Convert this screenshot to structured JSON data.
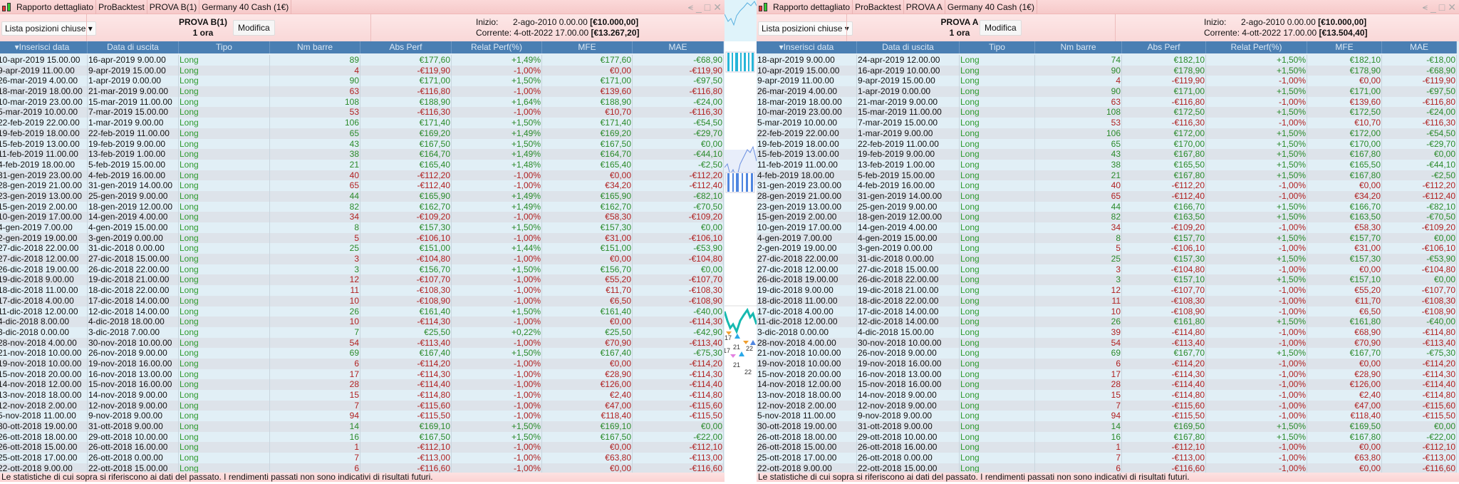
{
  "columns": [
    "▾Inserisci data",
    "Data di uscita",
    "Tipo",
    "Nm barre",
    "Abs Perf",
    "Relat Perf(%)",
    "MFE",
    "MAE"
  ],
  "colors": {
    "positive": "#2a8a2a",
    "negative": "#b02020",
    "header": "#4a7fb3",
    "type": "#2e9a2e"
  },
  "left": {
    "title_segments": [
      "Rapporto dettagliato",
      "ProBacktest",
      "PROVA B(1)",
      "Germany 40 Cash (1€)"
    ],
    "dropdown": "Lista posizioni chiuse ▾",
    "strategy": "PROVA B(1)",
    "timeframe": "1 ora",
    "modify": "Modifica",
    "start_label": "Inizio:",
    "start_value": "2-ago-2010 0.00.00",
    "start_capital": "[€10.000,00]",
    "current_label": "Corrente:",
    "current_value": "4-ott-2022 17.00.00",
    "current_capital": "[€13.267,20]",
    "footer": "Le statistiche di cui sopra si riferiscono ai dati del passato. I rendimenti passati non sono indicativi di risultati futuri.",
    "rows": [
      [
        "10-apr-2019 15.00.00",
        "16-apr-2019 9.00.00",
        "Long",
        "89",
        "€177,60",
        "+1,49%",
        "€177,60",
        "-€68,90"
      ],
      [
        "9-apr-2019 11.00.00",
        "9-apr-2019 15.00.00",
        "Long",
        "4",
        "-€119,90",
        "-1,00%",
        "€0,00",
        "-€119,90"
      ],
      [
        "26-mar-2019 4.00.00",
        "1-apr-2019 0.00.00",
        "Long",
        "90",
        "€171,00",
        "+1,50%",
        "€171,00",
        "-€97,50"
      ],
      [
        "18-mar-2019 18.00.00",
        "21-mar-2019 9.00.00",
        "Long",
        "63",
        "-€116,80",
        "-1,00%",
        "€139,60",
        "-€116,80"
      ],
      [
        "10-mar-2019 23.00.00",
        "15-mar-2019 11.00.00",
        "Long",
        "108",
        "€188,90",
        "+1,64%",
        "€188,90",
        "-€24,00"
      ],
      [
        "5-mar-2019 10.00.00",
        "7-mar-2019 15.00.00",
        "Long",
        "53",
        "-€116,30",
        "-1,00%",
        "€10,70",
        "-€116,30"
      ],
      [
        "22-feb-2019 22.00.00",
        "1-mar-2019 9.00.00",
        "Long",
        "106",
        "€171,40",
        "+1,50%",
        "€171,40",
        "-€54,50"
      ],
      [
        "19-feb-2019 18.00.00",
        "22-feb-2019 11.00.00",
        "Long",
        "65",
        "€169,20",
        "+1,49%",
        "€169,20",
        "-€29,70"
      ],
      [
        "15-feb-2019 13.00.00",
        "19-feb-2019 9.00.00",
        "Long",
        "43",
        "€167,50",
        "+1,50%",
        "€167,50",
        "€0,00"
      ],
      [
        "11-feb-2019 11.00.00",
        "13-feb-2019 1.00.00",
        "Long",
        "38",
        "€164,70",
        "+1,49%",
        "€164,70",
        "-€44,10"
      ],
      [
        "4-feb-2019 18.00.00",
        "5-feb-2019 15.00.00",
        "Long",
        "21",
        "€165,40",
        "+1,48%",
        "€165,40",
        "-€2,50"
      ],
      [
        "31-gen-2019 23.00.00",
        "4-feb-2019 16.00.00",
        "Long",
        "40",
        "-€112,20",
        "-1,00%",
        "€0,00",
        "-€112,20"
      ],
      [
        "28-gen-2019 21.00.00",
        "31-gen-2019 14.00.00",
        "Long",
        "65",
        "-€112,40",
        "-1,00%",
        "€34,20",
        "-€112,40"
      ],
      [
        "23-gen-2019 13.00.00",
        "25-gen-2019 9.00.00",
        "Long",
        "44",
        "€165,90",
        "+1,49%",
        "€165,90",
        "-€82,10"
      ],
      [
        "15-gen-2019 2.00.00",
        "18-gen-2019 12.00.00",
        "Long",
        "82",
        "€162,70",
        "+1,49%",
        "€162,70",
        "-€70,50"
      ],
      [
        "10-gen-2019 17.00.00",
        "14-gen-2019 4.00.00",
        "Long",
        "34",
        "-€109,20",
        "-1,00%",
        "€58,30",
        "-€109,20"
      ],
      [
        "4-gen-2019 7.00.00",
        "4-gen-2019 15.00.00",
        "Long",
        "8",
        "€157,30",
        "+1,50%",
        "€157,30",
        "€0,00"
      ],
      [
        "2-gen-2019 19.00.00",
        "3-gen-2019 0.00.00",
        "Long",
        "5",
        "-€106,10",
        "-1,00%",
        "€31,00",
        "-€106,10"
      ],
      [
        "27-dic-2018 22.00.00",
        "31-dic-2018 0.00.00",
        "Long",
        "25",
        "€151,00",
        "+1,44%",
        "€151,00",
        "-€53,90"
      ],
      [
        "27-dic-2018 12.00.00",
        "27-dic-2018 15.00.00",
        "Long",
        "3",
        "-€104,80",
        "-1,00%",
        "€0,00",
        "-€104,80"
      ],
      [
        "26-dic-2018 19.00.00",
        "26-dic-2018 22.00.00",
        "Long",
        "3",
        "€156,70",
        "+1,50%",
        "€156,70",
        "€0,00"
      ],
      [
        "19-dic-2018 9.00.00",
        "19-dic-2018 21.00.00",
        "Long",
        "12",
        "-€107,70",
        "-1,00%",
        "€55,20",
        "-€107,70"
      ],
      [
        "18-dic-2018 11.00.00",
        "18-dic-2018 22.00.00",
        "Long",
        "11",
        "-€108,30",
        "-1,00%",
        "€11,70",
        "-€108,30"
      ],
      [
        "17-dic-2018 4.00.00",
        "17-dic-2018 14.00.00",
        "Long",
        "10",
        "-€108,90",
        "-1,00%",
        "€6,50",
        "-€108,90"
      ],
      [
        "11-dic-2018 12.00.00",
        "12-dic-2018 14.00.00",
        "Long",
        "26",
        "€161,40",
        "+1,50%",
        "€161,40",
        "-€40,00"
      ],
      [
        "4-dic-2018 8.00.00",
        "4-dic-2018 18.00.00",
        "Long",
        "10",
        "-€114,30",
        "-1,00%",
        "€0,00",
        "-€114,30"
      ],
      [
        "3-dic-2018 0.00.00",
        "3-dic-2018 7.00.00",
        "Long",
        "7",
        "€25,50",
        "+0,22%",
        "€25,50",
        "-€42,90"
      ],
      [
        "28-nov-2018 4.00.00",
        "30-nov-2018 10.00.00",
        "Long",
        "54",
        "-€113,40",
        "-1,00%",
        "€70,90",
        "-€113,40"
      ],
      [
        "21-nov-2018 10.00.00",
        "26-nov-2018 9.00.00",
        "Long",
        "69",
        "€167,40",
        "+1,50%",
        "€167,40",
        "-€75,30"
      ],
      [
        "19-nov-2018 10.00.00",
        "19-nov-2018 16.00.00",
        "Long",
        "6",
        "-€114,20",
        "-1,00%",
        "€0,00",
        "-€114,20"
      ],
      [
        "15-nov-2018 20.00.00",
        "16-nov-2018 13.00.00",
        "Long",
        "17",
        "-€114,30",
        "-1,00%",
        "€28,90",
        "-€114,30"
      ],
      [
        "14-nov-2018 12.00.00",
        "15-nov-2018 16.00.00",
        "Long",
        "28",
        "-€114,40",
        "-1,00%",
        "€126,00",
        "-€114,40"
      ],
      [
        "13-nov-2018 18.00.00",
        "14-nov-2018 9.00.00",
        "Long",
        "15",
        "-€114,80",
        "-1,00%",
        "€2,40",
        "-€114,80"
      ],
      [
        "12-nov-2018 2.00.00",
        "12-nov-2018 9.00.00",
        "Long",
        "7",
        "-€115,60",
        "-1,00%",
        "€47,00",
        "-€115,60"
      ],
      [
        "5-nov-2018 11.00.00",
        "9-nov-2018 9.00.00",
        "Long",
        "94",
        "-€115,50",
        "-1,00%",
        "€118,40",
        "-€115,50"
      ],
      [
        "30-ott-2018 19.00.00",
        "31-ott-2018 9.00.00",
        "Long",
        "14",
        "€169,10",
        "+1,50%",
        "€169,10",
        "€0,00"
      ],
      [
        "26-ott-2018 18.00.00",
        "29-ott-2018 10.00.00",
        "Long",
        "16",
        "€167,50",
        "+1,50%",
        "€167,50",
        "-€22,00"
      ],
      [
        "26-ott-2018 15.00.00",
        "26-ott-2018 16.00.00",
        "Long",
        "1",
        "-€112,10",
        "-1,00%",
        "€0,00",
        "-€112,10"
      ],
      [
        "25-ott-2018 17.00.00",
        "26-ott-2018 0.00.00",
        "Long",
        "7",
        "-€113,00",
        "-1,00%",
        "€63,80",
        "-€113,00"
      ],
      [
        "22-ott-2018 9.00.00",
        "22-ott-2018 15.00.00",
        "Long",
        "6",
        "-€116,60",
        "-1,00%",
        "€0,00",
        "-€116,60"
      ]
    ]
  },
  "right": {
    "title_segments": [
      "Rapporto dettagliato",
      "ProBacktest",
      "PROVA A",
      "Germany 40 Cash (1€)"
    ],
    "dropdown": "Lista posizioni chiuse ▾",
    "strategy": "PROVA A",
    "timeframe": "1 ora",
    "modify": "Modifica",
    "start_label": "Inizio:",
    "start_value": "2-ago-2010 0.00.00",
    "start_capital": "[€10.000,00]",
    "current_label": "Corrente:",
    "current_value": "4-ott-2022 17.00.00",
    "current_capital": "[€13.504,40]",
    "footer": "Le statistiche di cui sopra si riferiscono ai dati del passato. I rendimenti passati non sono indicativi di risultati futuri.",
    "rows": [
      [
        "18-apr-2019 9.00.00",
        "24-apr-2019 12.00.00",
        "Long",
        "74",
        "€182,10",
        "+1,50%",
        "€182,10",
        "-€18,00"
      ],
      [
        "10-apr-2019 15.00.00",
        "16-apr-2019 10.00.00",
        "Long",
        "90",
        "€178,90",
        "+1,50%",
        "€178,90",
        "-€68,90"
      ],
      [
        "9-apr-2019 11.00.00",
        "9-apr-2019 15.00.00",
        "Long",
        "4",
        "-€119,90",
        "-1,00%",
        "€0,00",
        "-€119,90"
      ],
      [
        "26-mar-2019 4.00.00",
        "1-apr-2019 0.00.00",
        "Long",
        "90",
        "€171,00",
        "+1,50%",
        "€171,00",
        "-€97,50"
      ],
      [
        "18-mar-2019 18.00.00",
        "21-mar-2019 9.00.00",
        "Long",
        "63",
        "-€116,80",
        "-1,00%",
        "€139,60",
        "-€116,80"
      ],
      [
        "10-mar-2019 23.00.00",
        "15-mar-2019 11.00.00",
        "Long",
        "108",
        "€172,50",
        "+1,50%",
        "€172,50",
        "-€24,00"
      ],
      [
        "5-mar-2019 10.00.00",
        "7-mar-2019 15.00.00",
        "Long",
        "53",
        "-€116,30",
        "-1,00%",
        "€10,70",
        "-€116,30"
      ],
      [
        "22-feb-2019 22.00.00",
        "1-mar-2019 9.00.00",
        "Long",
        "106",
        "€172,00",
        "+1,50%",
        "€172,00",
        "-€54,50"
      ],
      [
        "19-feb-2019 18.00.00",
        "22-feb-2019 11.00.00",
        "Long",
        "65",
        "€170,00",
        "+1,50%",
        "€170,00",
        "-€29,70"
      ],
      [
        "15-feb-2019 13.00.00",
        "19-feb-2019 9.00.00",
        "Long",
        "43",
        "€167,80",
        "+1,50%",
        "€167,80",
        "€0,00"
      ],
      [
        "11-feb-2019 11.00.00",
        "13-feb-2019 1.00.00",
        "Long",
        "38",
        "€165,50",
        "+1,50%",
        "€165,50",
        "-€44,10"
      ],
      [
        "4-feb-2019 18.00.00",
        "5-feb-2019 15.00.00",
        "Long",
        "21",
        "€167,80",
        "+1,50%",
        "€167,80",
        "-€2,50"
      ],
      [
        "31-gen-2019 23.00.00",
        "4-feb-2019 16.00.00",
        "Long",
        "40",
        "-€112,20",
        "-1,00%",
        "€0,00",
        "-€112,20"
      ],
      [
        "28-gen-2019 21.00.00",
        "31-gen-2019 14.00.00",
        "Long",
        "65",
        "-€112,40",
        "-1,00%",
        "€34,20",
        "-€112,40"
      ],
      [
        "23-gen-2019 13.00.00",
        "25-gen-2019 9.00.00",
        "Long",
        "44",
        "€166,70",
        "+1,50%",
        "€166,70",
        "-€82,10"
      ],
      [
        "15-gen-2019 2.00.00",
        "18-gen-2019 12.00.00",
        "Long",
        "82",
        "€163,50",
        "+1,50%",
        "€163,50",
        "-€70,50"
      ],
      [
        "10-gen-2019 17.00.00",
        "14-gen-2019 4.00.00",
        "Long",
        "34",
        "-€109,20",
        "-1,00%",
        "€58,30",
        "-€109,20"
      ],
      [
        "4-gen-2019 7.00.00",
        "4-gen-2019 15.00.00",
        "Long",
        "8",
        "€157,70",
        "+1,50%",
        "€157,70",
        "€0,00"
      ],
      [
        "2-gen-2019 19.00.00",
        "3-gen-2019 0.00.00",
        "Long",
        "5",
        "-€106,10",
        "-1,00%",
        "€31,00",
        "-€106,10"
      ],
      [
        "27-dic-2018 22.00.00",
        "31-dic-2018 0.00.00",
        "Long",
        "25",
        "€157,30",
        "+1,50%",
        "€157,30",
        "-€53,90"
      ],
      [
        "27-dic-2018 12.00.00",
        "27-dic-2018 15.00.00",
        "Long",
        "3",
        "-€104,80",
        "-1,00%",
        "€0,00",
        "-€104,80"
      ],
      [
        "26-dic-2018 19.00.00",
        "26-dic-2018 22.00.00",
        "Long",
        "3",
        "€157,10",
        "+1,50%",
        "€157,10",
        "€0,00"
      ],
      [
        "19-dic-2018 9.00.00",
        "19-dic-2018 21.00.00",
        "Long",
        "12",
        "-€107,70",
        "-1,00%",
        "€55,20",
        "-€107,70"
      ],
      [
        "18-dic-2018 11.00.00",
        "18-dic-2018 22.00.00",
        "Long",
        "11",
        "-€108,30",
        "-1,00%",
        "€11,70",
        "-€108,30"
      ],
      [
        "17-dic-2018 4.00.00",
        "17-dic-2018 14.00.00",
        "Long",
        "10",
        "-€108,90",
        "-1,00%",
        "€6,50",
        "-€108,90"
      ],
      [
        "11-dic-2018 12.00.00",
        "12-dic-2018 14.00.00",
        "Long",
        "26",
        "€161,80",
        "+1,50%",
        "€161,80",
        "-€40,00"
      ],
      [
        "3-dic-2018 0.00.00",
        "4-dic-2018 15.00.00",
        "Long",
        "39",
        "-€114,80",
        "-1,00%",
        "€68,90",
        "-€114,80"
      ],
      [
        "28-nov-2018 4.00.00",
        "30-nov-2018 10.00.00",
        "Long",
        "54",
        "-€113,40",
        "-1,00%",
        "€70,90",
        "-€113,40"
      ],
      [
        "21-nov-2018 10.00.00",
        "26-nov-2018 9.00.00",
        "Long",
        "69",
        "€167,70",
        "+1,50%",
        "€167,70",
        "-€75,30"
      ],
      [
        "19-nov-2018 10.00.00",
        "19-nov-2018 16.00.00",
        "Long",
        "6",
        "-€114,20",
        "-1,00%",
        "€0,00",
        "-€114,20"
      ],
      [
        "15-nov-2018 20.00.00",
        "16-nov-2018 13.00.00",
        "Long",
        "17",
        "-€114,30",
        "-1,00%",
        "€28,90",
        "-€114,30"
      ],
      [
        "14-nov-2018 12.00.00",
        "15-nov-2018 16.00.00",
        "Long",
        "28",
        "-€114,40",
        "-1,00%",
        "€126,00",
        "-€114,40"
      ],
      [
        "13-nov-2018 18.00.00",
        "14-nov-2018 9.00.00",
        "Long",
        "15",
        "-€114,80",
        "-1,00%",
        "€2,40",
        "-€114,80"
      ],
      [
        "12-nov-2018 2.00.00",
        "12-nov-2018 9.00.00",
        "Long",
        "7",
        "-€115,60",
        "-1,00%",
        "€47,00",
        "-€115,60"
      ],
      [
        "5-nov-2018 11.00.00",
        "9-nov-2018 9.00.00",
        "Long",
        "94",
        "-€115,50",
        "-1,00%",
        "€118,40",
        "-€115,50"
      ],
      [
        "30-ott-2018 19.00.00",
        "31-ott-2018 9.00.00",
        "Long",
        "14",
        "€169,50",
        "+1,50%",
        "€169,50",
        "€0,00"
      ],
      [
        "26-ott-2018 18.00.00",
        "29-ott-2018 10.00.00",
        "Long",
        "16",
        "€167,80",
        "+1,50%",
        "€167,80",
        "-€22,00"
      ],
      [
        "26-ott-2018 15.00.00",
        "26-ott-2018 16.00.00",
        "Long",
        "1",
        "-€112,10",
        "-1,00%",
        "€0,00",
        "-€112,10"
      ],
      [
        "25-ott-2018 17.00.00",
        "26-ott-2018 0.00.00",
        "Long",
        "7",
        "-€113,00",
        "-1,00%",
        "€63,80",
        "-€113,00"
      ],
      [
        "22-ott-2018 9.00.00",
        "22-ott-2018 15.00.00",
        "Long",
        "6",
        "-€116,60",
        "-1,00%",
        "€0,00",
        "-€116,60"
      ]
    ]
  },
  "middle": {
    "labels": [
      "17",
      "21",
      "22",
      "21",
      "22",
      "17"
    ]
  }
}
